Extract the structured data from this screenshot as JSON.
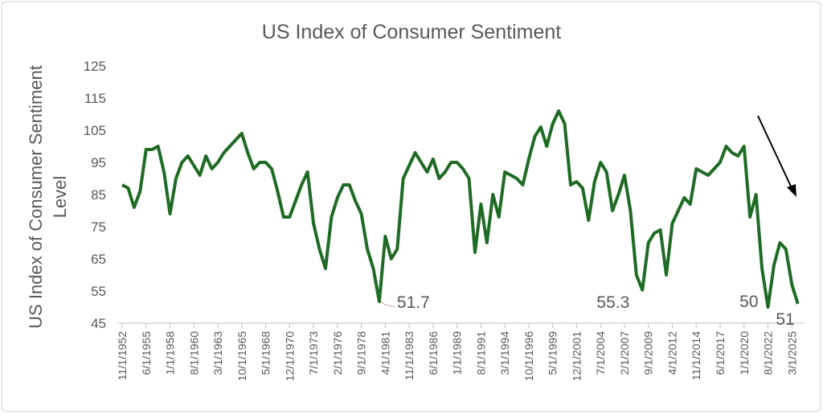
{
  "chart_data": {
    "type": "line",
    "title": "US Index of Consumer Sentiment",
    "y_label": [
      "US Index of Consumer Sentiment",
      "Level"
    ],
    "categories": [
      "11/1/1952",
      null,
      null,
      null,
      "6/1/1955",
      null,
      null,
      null,
      "1/1/1958",
      null,
      null,
      null,
      "8/1/1960",
      null,
      null,
      null,
      "3/1/1963",
      null,
      null,
      null,
      "10/1/1965",
      null,
      null,
      null,
      "5/1/1968",
      null,
      null,
      null,
      "12/1/1970",
      null,
      null,
      null,
      "7/1/1973",
      null,
      null,
      null,
      "2/1/1976",
      null,
      null,
      null,
      "9/1/1978",
      null,
      null,
      null,
      "4/1/1981",
      null,
      null,
      null,
      "11/1/1983",
      null,
      null,
      null,
      "6/1/1986",
      null,
      null,
      null,
      "1/1/1989",
      null,
      null,
      null,
      "8/1/1991",
      null,
      null,
      null,
      "3/1/1994",
      null,
      null,
      null,
      "10/1/1996",
      null,
      null,
      null,
      "5/1/1999",
      null,
      null,
      null,
      "12/1/2001",
      null,
      null,
      null,
      "7/1/2004",
      null,
      null,
      null,
      "2/1/2007",
      null,
      null,
      null,
      "9/1/2009",
      null,
      null,
      null,
      "4/1/2012",
      null,
      null,
      null,
      "11/1/2014",
      null,
      null,
      null,
      "6/1/2017",
      null,
      null,
      null,
      "1/1/2020",
      null,
      null,
      null,
      "8/1/2022",
      null,
      null,
      null,
      "3/1/2025",
      null
    ],
    "series": [
      {
        "name": "US Index of Consumer Sentiment",
        "color": "#1f6b25",
        "values": [
          88,
          87,
          81,
          86,
          99,
          99,
          100,
          92,
          79,
          90,
          95,
          97,
          94,
          91,
          97,
          93,
          95,
          98,
          100,
          102,
          104,
          98,
          93,
          95,
          95,
          93,
          86,
          78,
          78,
          83,
          88,
          92,
          76,
          68,
          62,
          78,
          84,
          88,
          88,
          83,
          79,
          68,
          62,
          51.7,
          72,
          65,
          68,
          90,
          94,
          98,
          95,
          92,
          96,
          90,
          92,
          95,
          95,
          93,
          90,
          67,
          82,
          70,
          85,
          78,
          92,
          91,
          90,
          88,
          96,
          103,
          106,
          100,
          107,
          111,
          107,
          88,
          89,
          87,
          77,
          89,
          95,
          92,
          80,
          85,
          91,
          80,
          60,
          55.3,
          70,
          73,
          74,
          60,
          76,
          80,
          84,
          82,
          93,
          92,
          91,
          93,
          95,
          100,
          98,
          97,
          100,
          78,
          85,
          62,
          50,
          63,
          70,
          68,
          57,
          51
        ],
        "value_labels": [
          null,
          null,
          null,
          null,
          null,
          null,
          null,
          null,
          null,
          null,
          null,
          null,
          null,
          null,
          null,
          null,
          null,
          null,
          null,
          null,
          null,
          null,
          null,
          null,
          null,
          null,
          null,
          null,
          null,
          null,
          null,
          null,
          null,
          null,
          null,
          null,
          null,
          null,
          null,
          null,
          null,
          null,
          null,
          "51.7",
          null,
          null,
          null,
          null,
          null,
          null,
          null,
          null,
          null,
          null,
          null,
          null,
          null,
          null,
          null,
          null,
          null,
          null,
          null,
          null,
          null,
          null,
          null,
          null,
          null,
          null,
          null,
          null,
          null,
          null,
          null,
          null,
          null,
          null,
          null,
          null,
          null,
          null,
          null,
          null,
          null,
          null,
          null,
          "55.3",
          null,
          null,
          null,
          null,
          null,
          null,
          null,
          null,
          null,
          null,
          null,
          null,
          null,
          null,
          null,
          null,
          null,
          null,
          null,
          null,
          "50",
          null,
          null,
          null,
          null,
          "51"
        ]
      }
    ],
    "ylim": [
      45,
      125
    ],
    "yticks": [
      45,
      55,
      65,
      75,
      85,
      95,
      105,
      115,
      125
    ]
  }
}
